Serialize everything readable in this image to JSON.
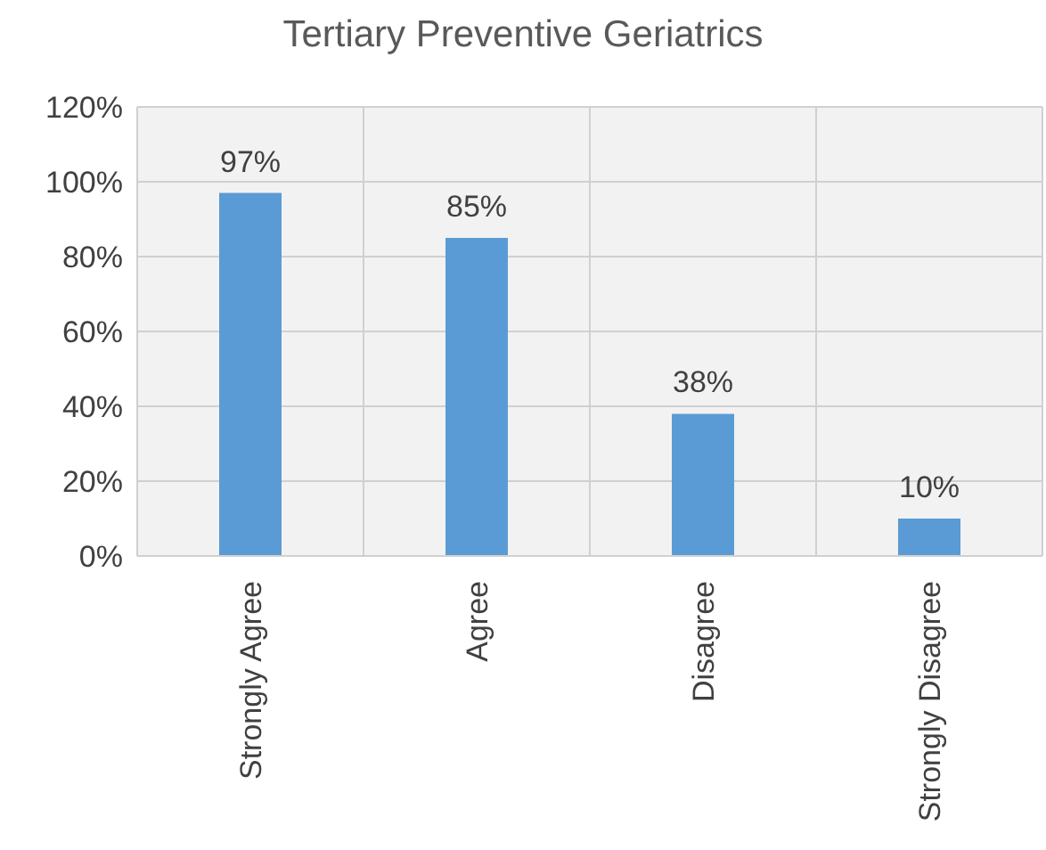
{
  "chart_data": {
    "type": "bar",
    "title": "Tertiary Preventive Geriatrics",
    "categories": [
      "Strongly Agree",
      "Agree",
      "Disagree",
      "Strongly Disagree"
    ],
    "values": [
      97,
      85,
      38,
      10
    ],
    "color": "#5b9bd5",
    "value_labels": [
      "97%",
      "85%",
      "38%",
      "10%"
    ],
    "ylim": [
      0,
      120
    ],
    "yticks": [
      {
        "value": 0,
        "label": "0%"
      },
      {
        "value": 20,
        "label": "20%"
      },
      {
        "value": 40,
        "label": "40%"
      },
      {
        "value": 60,
        "label": "60%"
      },
      {
        "value": 80,
        "label": "80%"
      },
      {
        "value": 100,
        "label": "100%"
      },
      {
        "value": 120,
        "label": "120%"
      }
    ],
    "grid": true
  }
}
